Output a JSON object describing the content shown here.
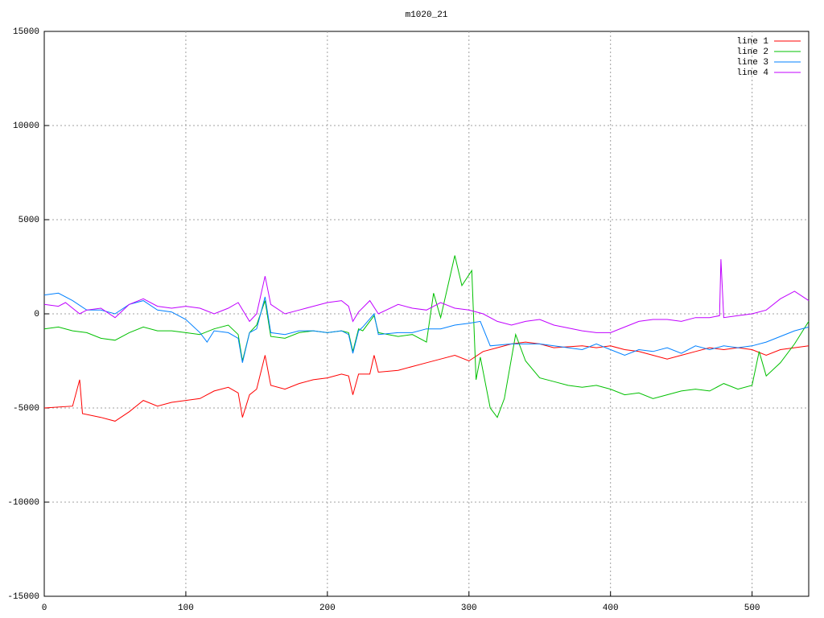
{
  "chart_data": {
    "type": "line",
    "title": "m1020_21",
    "xlim": [
      0,
      540
    ],
    "xticks": [
      0,
      100,
      200,
      300,
      400,
      500
    ],
    "ylim": [
      -15000,
      15000
    ],
    "yticks": [
      -15000,
      -10000,
      -5000,
      0,
      5000,
      10000,
      15000
    ],
    "grid": true,
    "legend": "top-right",
    "series": [
      {
        "name": "line 1",
        "color": "#ff0000",
        "x": [
          0,
          20,
          25,
          27,
          40,
          50,
          60,
          70,
          80,
          90,
          100,
          110,
          120,
          130,
          137,
          140,
          145,
          150,
          156,
          160,
          170,
          180,
          190,
          200,
          210,
          215,
          218,
          222,
          230,
          233,
          236,
          250,
          260,
          270,
          280,
          290,
          300,
          310,
          320,
          330,
          340,
          350,
          360,
          380,
          390,
          400,
          410,
          420,
          430,
          440,
          450,
          460,
          470,
          480,
          490,
          500,
          510,
          520,
          530,
          540
        ],
        "values": [
          -5000,
          -4900,
          -3500,
          -5300,
          -5500,
          -5700,
          -5200,
          -4600,
          -4900,
          -4700,
          -4600,
          -4500,
          -4100,
          -3900,
          -4200,
          -5500,
          -4300,
          -4000,
          -2200,
          -3800,
          -4000,
          -3700,
          -3500,
          -3400,
          -3200,
          -3300,
          -4300,
          -3200,
          -3200,
          -2200,
          -3100,
          -3000,
          -2800,
          -2600,
          -2400,
          -2200,
          -2500,
          -2000,
          -1800,
          -1600,
          -1500,
          -1600,
          -1800,
          -1700,
          -1800,
          -1700,
          -1900,
          -2000,
          -2200,
          -2400,
          -2200,
          -2000,
          -1800,
          -1900,
          -1800,
          -1900,
          -2200,
          -1900,
          -1800,
          -1700
        ]
      },
      {
        "name": "line 2",
        "color": "#00c000",
        "x": [
          0,
          10,
          20,
          30,
          40,
          50,
          60,
          70,
          80,
          90,
          100,
          110,
          120,
          130,
          137,
          140,
          145,
          150,
          156,
          160,
          170,
          180,
          190,
          200,
          210,
          215,
          218,
          222,
          225,
          233,
          236,
          250,
          260,
          270,
          275,
          280,
          290,
          295,
          302,
          305,
          308,
          315,
          320,
          325,
          333,
          340,
          350,
          360,
          370,
          380,
          390,
          400,
          410,
          420,
          430,
          440,
          450,
          460,
          470,
          480,
          490,
          500,
          505,
          510,
          520,
          530,
          540
        ],
        "values": [
          -800,
          -700,
          -900,
          -1000,
          -1300,
          -1400,
          -1000,
          -700,
          -900,
          -900,
          -1000,
          -1100,
          -800,
          -600,
          -1100,
          -2500,
          -1000,
          -600,
          700,
          -1200,
          -1300,
          -1000,
          -900,
          -1000,
          -900,
          -1000,
          -2000,
          -800,
          -900,
          -100,
          -1000,
          -1200,
          -1100,
          -1500,
          1100,
          -200,
          3100,
          1500,
          2300,
          -3500,
          -2300,
          -5000,
          -5500,
          -4500,
          -1100,
          -2500,
          -3400,
          -3600,
          -3800,
          -3900,
          -3800,
          -4000,
          -4300,
          -4200,
          -4500,
          -4300,
          -4100,
          -4000,
          -4100,
          -3700,
          -4000,
          -3800,
          -2000,
          -3300,
          -2600,
          -1600,
          -400
        ]
      },
      {
        "name": "line 3",
        "color": "#0080ff",
        "x": [
          0,
          10,
          20,
          30,
          40,
          50,
          60,
          70,
          80,
          90,
          100,
          110,
          115,
          120,
          130,
          137,
          140,
          145,
          150,
          156,
          160,
          170,
          180,
          190,
          200,
          210,
          215,
          218,
          222,
          225,
          233,
          236,
          250,
          260,
          270,
          280,
          290,
          300,
          308,
          315,
          330,
          350,
          370,
          380,
          390,
          400,
          410,
          420,
          430,
          440,
          450,
          460,
          470,
          480,
          490,
          500,
          510,
          520,
          530,
          540
        ],
        "values": [
          1000,
          1100,
          700,
          200,
          200,
          0,
          500,
          700,
          200,
          100,
          -300,
          -1000,
          -1500,
          -900,
          -1000,
          -1300,
          -2600,
          -1000,
          -800,
          900,
          -1000,
          -1100,
          -900,
          -900,
          -1000,
          -900,
          -1100,
          -2100,
          -900,
          -700,
          0,
          -1100,
          -1000,
          -1000,
          -800,
          -800,
          -600,
          -500,
          -400,
          -1700,
          -1600,
          -1600,
          -1800,
          -1900,
          -1600,
          -1900,
          -2200,
          -1900,
          -2000,
          -1800,
          -2100,
          -1700,
          -1900,
          -1700,
          -1800,
          -1700,
          -1500,
          -1200,
          -900,
          -700
        ]
      },
      {
        "name": "line 4",
        "color": "#c000ff",
        "x": [
          0,
          10,
          15,
          25,
          30,
          40,
          50,
          60,
          70,
          80,
          90,
          100,
          110,
          120,
          130,
          137,
          145,
          150,
          156,
          160,
          170,
          180,
          190,
          200,
          210,
          215,
          218,
          222,
          230,
          236,
          250,
          260,
          270,
          280,
          290,
          300,
          310,
          320,
          330,
          340,
          350,
          360,
          380,
          390,
          400,
          410,
          420,
          430,
          440,
          450,
          460,
          470,
          477,
          478,
          480,
          490,
          500,
          510,
          520,
          530,
          540
        ],
        "values": [
          500,
          400,
          600,
          0,
          200,
          300,
          -200,
          500,
          800,
          400,
          300,
          400,
          300,
          0,
          300,
          600,
          -400,
          0,
          2000,
          500,
          0,
          200,
          400,
          600,
          700,
          400,
          -400,
          100,
          700,
          0,
          500,
          300,
          200,
          600,
          300,
          200,
          0,
          -400,
          -600,
          -400,
          -300,
          -600,
          -900,
          -1000,
          -1000,
          -700,
          -400,
          -300,
          -300,
          -400,
          -200,
          -200,
          -100,
          2900,
          -200,
          -100,
          0,
          200,
          800,
          1200,
          700
        ]
      }
    ]
  }
}
